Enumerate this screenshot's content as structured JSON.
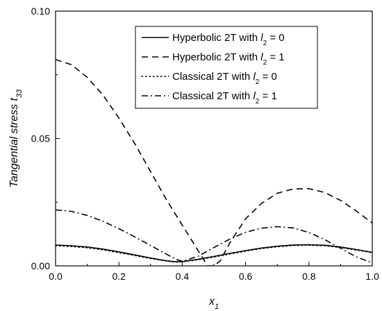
{
  "chart_data": {
    "type": "line",
    "title": "",
    "xlabel": {
      "base": "x",
      "sub": "1"
    },
    "ylabel": {
      "base": "Tangential stress t",
      "sub": "33"
    },
    "xlim": [
      0,
      1
    ],
    "ylim": [
      0,
      0.1
    ],
    "x_ticks": [
      "0.0",
      "0.2",
      "0.4",
      "0.6",
      "0.8",
      "1.0"
    ],
    "x_tick_values": [
      0,
      0.2,
      0.4,
      0.6,
      0.8,
      1.0
    ],
    "y_ticks": [
      "0.00",
      "0.05",
      "0.10"
    ],
    "y_tick_values": [
      0,
      0.05,
      0.1
    ],
    "grid": false,
    "legend_position": "top-right",
    "series": [
      {
        "name": "Hyperbolic 2T with l2 = 0",
        "legend_parts": [
          "Hyperbolic 2T with ",
          "l",
          "2",
          " = 0"
        ],
        "style": "solid",
        "x": [
          0,
          0.05,
          0.1,
          0.15,
          0.2,
          0.25,
          0.3,
          0.35,
          0.38,
          0.4,
          0.45,
          0.5,
          0.55,
          0.6,
          0.65,
          0.7,
          0.75,
          0.8,
          0.85,
          0.9,
          0.95,
          1.0
        ],
        "y": [
          0.0082,
          0.0079,
          0.0074,
          0.0066,
          0.0055,
          0.0043,
          0.0031,
          0.002,
          0.0016,
          0.0017,
          0.0026,
          0.0037,
          0.0049,
          0.006,
          0.007,
          0.0077,
          0.0082,
          0.0083,
          0.0081,
          0.0074,
          0.0064,
          0.0053
        ]
      },
      {
        "name": "Hyperbolic 2T with l2 = 1",
        "legend_parts": [
          "Hyperbolic 2T with ",
          "l",
          "2",
          " = 1"
        ],
        "style": "dashed",
        "x": [
          0,
          0.05,
          0.1,
          0.15,
          0.2,
          0.25,
          0.3,
          0.35,
          0.4,
          0.45,
          0.48,
          0.5,
          0.52,
          0.55,
          0.6,
          0.65,
          0.7,
          0.75,
          0.8,
          0.85,
          0.9,
          0.95,
          1.0
        ],
        "y": [
          0.081,
          0.079,
          0.074,
          0.067,
          0.058,
          0.048,
          0.037,
          0.026,
          0.016,
          0.006,
          0.0,
          0.0,
          0.002,
          0.009,
          0.0185,
          0.0245,
          0.0285,
          0.0302,
          0.0303,
          0.0288,
          0.0257,
          0.0215,
          0.0168
        ]
      },
      {
        "name": "Classical 2T with l2 = 0",
        "legend_parts": [
          "Classical 2T with ",
          "l",
          "2",
          " = 0"
        ],
        "style": "dotted",
        "x": [
          0,
          0.05,
          0.1,
          0.15,
          0.2,
          0.25,
          0.3,
          0.35,
          0.38,
          0.4,
          0.45,
          0.5,
          0.55,
          0.6,
          0.65,
          0.7,
          0.75,
          0.8,
          0.85,
          0.9,
          0.95,
          1.0
        ],
        "y": [
          0.0079,
          0.0076,
          0.0071,
          0.0063,
          0.0052,
          0.0041,
          0.0029,
          0.0019,
          0.0015,
          0.0016,
          0.0024,
          0.0035,
          0.0047,
          0.0058,
          0.0068,
          0.0075,
          0.008,
          0.0081,
          0.0079,
          0.0072,
          0.0062,
          0.0052
        ]
      },
      {
        "name": "Classical 2T with l2 = 1",
        "legend_parts": [
          "Classical 2T with ",
          "l",
          "2",
          " = 1"
        ],
        "style": "dashdot",
        "x": [
          0,
          0.05,
          0.1,
          0.15,
          0.2,
          0.25,
          0.3,
          0.35,
          0.38,
          0.4,
          0.45,
          0.5,
          0.55,
          0.6,
          0.65,
          0.7,
          0.75,
          0.8,
          0.85,
          0.9,
          0.95,
          1.0
        ],
        "y": [
          0.022,
          0.0214,
          0.0198,
          0.0175,
          0.0146,
          0.0114,
          0.008,
          0.0046,
          0.0026,
          0.0018,
          0.0038,
          0.0072,
          0.0105,
          0.0132,
          0.0148,
          0.0154,
          0.0149,
          0.0131,
          0.0103,
          0.0069,
          0.0035,
          0.0012
        ]
      }
    ]
  }
}
